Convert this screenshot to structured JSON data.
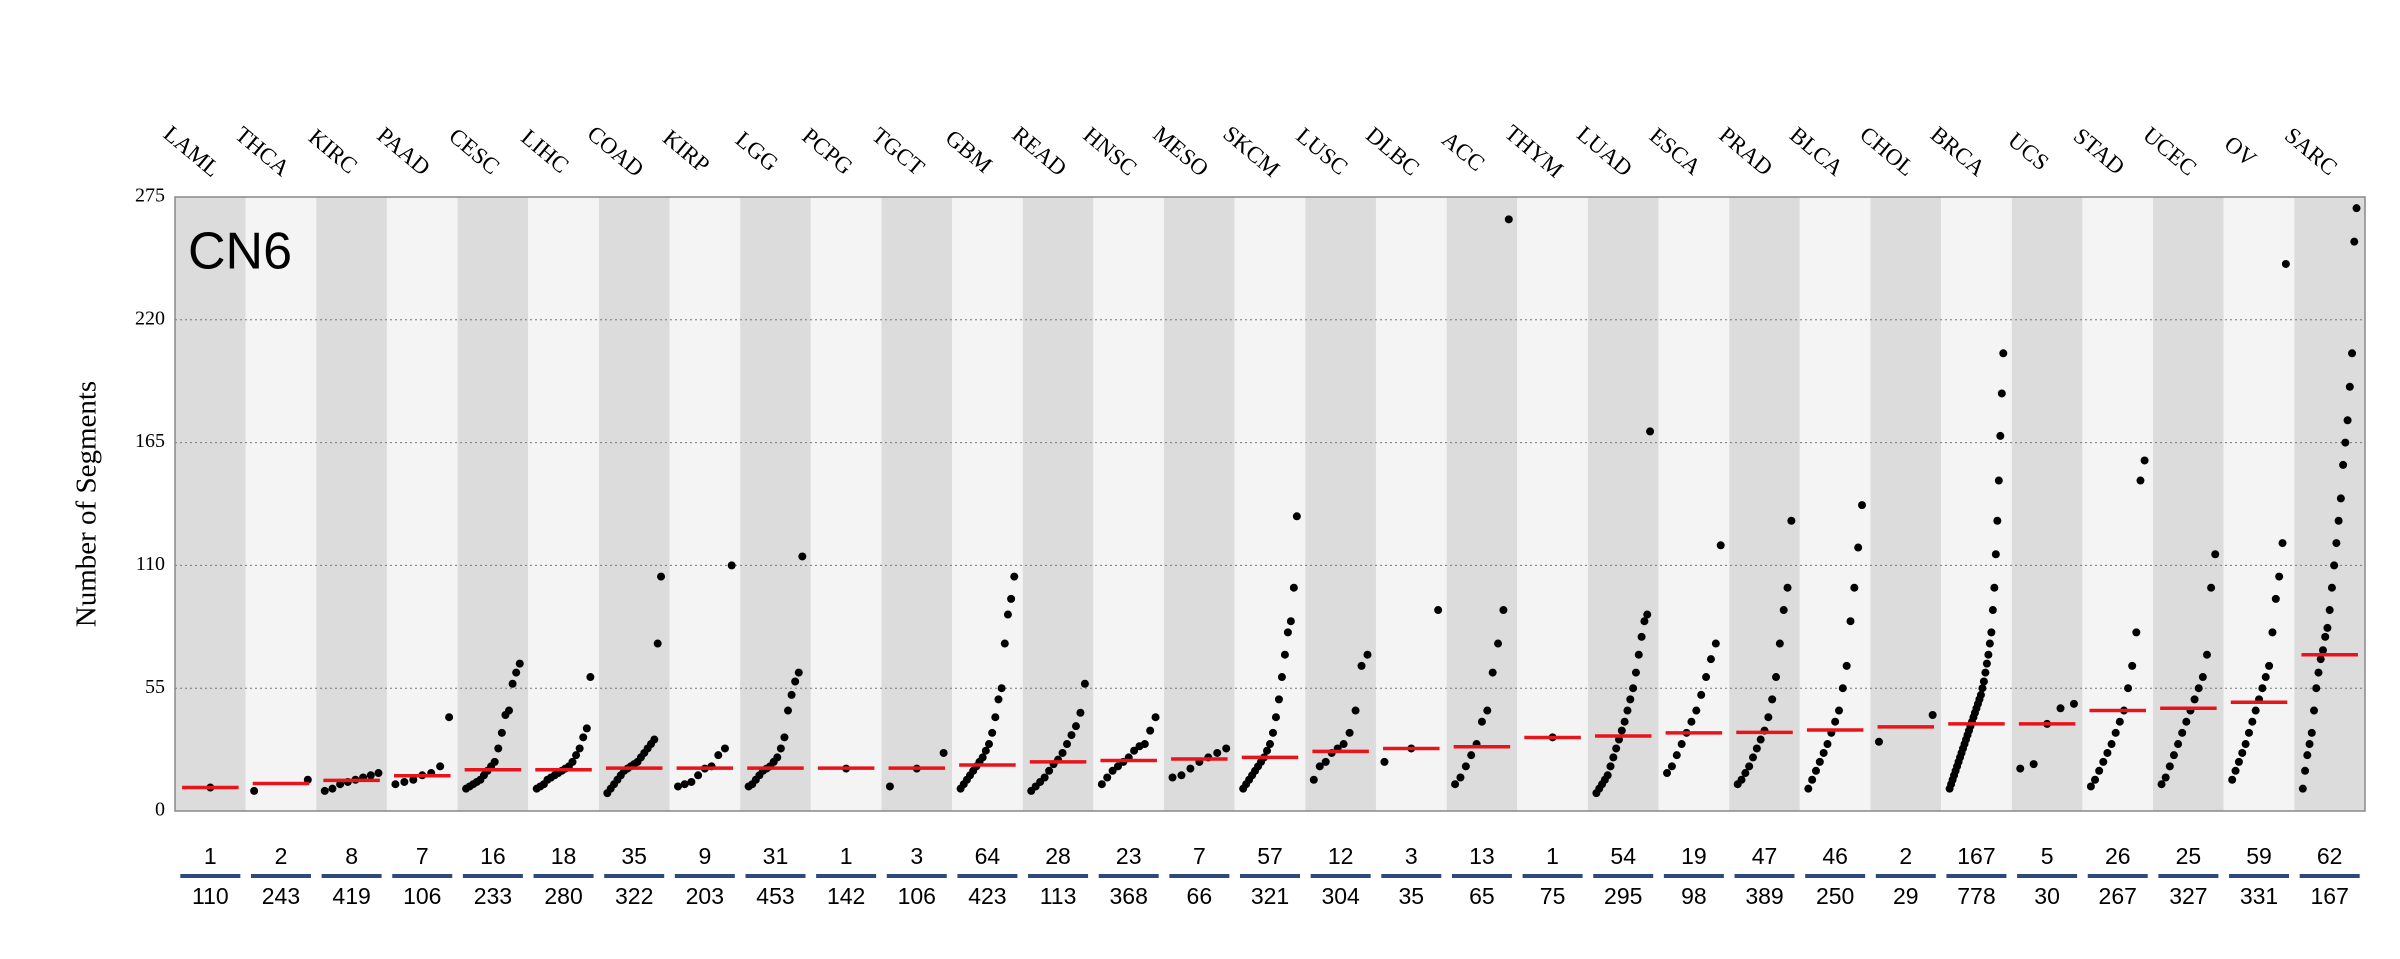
{
  "chart_data": {
    "type": "dot",
    "annotation": "CN6",
    "y_label": "Number of Segments",
    "categories": [
      "LAML",
      "THCA",
      "KIRC",
      "PAAD",
      "CESC",
      "LIHC",
      "COAD",
      "KIRP",
      "LGG",
      "PCPG",
      "TGCT",
      "GBM",
      "READ",
      "HNSC",
      "MESO",
      "SKCM",
      "LUSC",
      "DLBC",
      "ACC",
      "THYM",
      "LUAD",
      "ESCA",
      "PRAD",
      "BLCA",
      "CHOL",
      "BRCA",
      "UCS",
      "STAD",
      "UCEC",
      "OV",
      "SARC"
    ],
    "counts": [
      "1",
      "2",
      "8",
      "7",
      "16",
      "18",
      "35",
      "9",
      "31",
      "1",
      "3",
      "64",
      "28",
      "23",
      "7",
      "57",
      "12",
      "3",
      "13",
      "1",
      "54",
      "19",
      "47",
      "46",
      "2",
      "167",
      "5",
      "26",
      "25",
      "59",
      "62"
    ],
    "totals": [
      "110",
      "243",
      "419",
      "106",
      "233",
      "280",
      "322",
      "203",
      "453",
      "142",
      "106",
      "423",
      "113",
      "368",
      "66",
      "321",
      "304",
      "35",
      "65",
      "75",
      "295",
      "98",
      "389",
      "250",
      "29",
      "778",
      "30",
      "267",
      "327",
      "331",
      "167"
    ],
    "medians": [
      10.5,
      12.3,
      13.7,
      15.8,
      18.5,
      18.5,
      19.2,
      19.2,
      19.2,
      19.2,
      19.2,
      20.6,
      22,
      22.6,
      23.3,
      24,
      26.7,
      28,
      28.8,
      32.9,
      33.6,
      35,
      35.2,
      36.3,
      37.7,
      39,
      39,
      45,
      46,
      48.7,
      70
    ],
    "points": [
      [
        10.5
      ],
      [
        9,
        14
      ],
      [
        9,
        10,
        12,
        13,
        14,
        15,
        16,
        17
      ],
      [
        12,
        13,
        14,
        16,
        17,
        20,
        42
      ],
      [
        10,
        11,
        12,
        13,
        14,
        16,
        18,
        20,
        22,
        28,
        35,
        43,
        45,
        57,
        62,
        66
      ],
      [
        10,
        11,
        12,
        14,
        15,
        16,
        17,
        18,
        19,
        20,
        22,
        25,
        28,
        33,
        37,
        60
      ],
      [
        8,
        10,
        12,
        14,
        16,
        18,
        19,
        20,
        21,
        22,
        24,
        26,
        28,
        30,
        32,
        75,
        105
      ],
      [
        11,
        12,
        13,
        16,
        19,
        20,
        25,
        28,
        110
      ],
      [
        11,
        12,
        14,
        16,
        18,
        19,
        20,
        22,
        24,
        28,
        33,
        45,
        52,
        58,
        62,
        114
      ],
      [
        19
      ],
      [
        11,
        19,
        26
      ],
      [
        10,
        12,
        14,
        16,
        18,
        20,
        22,
        24,
        27,
        30,
        35,
        42,
        50,
        55,
        75,
        88,
        95,
        105
      ],
      [
        9,
        11,
        13,
        15,
        18,
        21,
        23,
        26,
        30,
        34,
        38,
        44,
        57
      ],
      [
        12,
        15,
        18,
        20,
        22,
        24,
        27,
        29,
        30,
        36,
        42
      ],
      [
        15,
        16,
        19,
        22,
        24,
        26,
        28
      ],
      [
        10,
        12,
        14,
        16,
        18,
        20,
        22,
        24,
        27,
        30,
        35,
        42,
        50,
        60,
        70,
        80,
        85,
        100,
        132
      ],
      [
        14,
        20,
        22,
        26,
        28,
        30,
        35,
        45,
        65,
        70
      ],
      [
        22,
        28,
        90
      ],
      [
        12,
        15,
        20,
        25,
        30,
        40,
        45,
        62,
        75,
        90,
        265
      ],
      [
        33
      ],
      [
        8,
        10,
        12,
        14,
        16,
        20,
        24,
        28,
        32,
        36,
        40,
        45,
        50,
        55,
        62,
        70,
        78,
        85,
        88,
        170
      ],
      [
        17,
        20,
        25,
        30,
        35,
        40,
        45,
        52,
        60,
        68,
        75,
        119
      ],
      [
        12,
        14,
        17,
        20,
        24,
        28,
        32,
        36,
        42,
        50,
        60,
        75,
        90,
        100,
        130
      ],
      [
        10,
        14,
        18,
        22,
        26,
        30,
        35,
        40,
        45,
        55,
        65,
        85,
        100,
        118,
        137
      ],
      [
        31,
        43
      ],
      [
        10,
        12,
        14,
        16,
        18,
        20,
        22,
        24,
        26,
        28,
        30,
        32,
        34,
        36,
        38,
        40,
        42,
        44,
        46,
        48,
        50,
        52,
        55,
        58,
        62,
        66,
        70,
        75,
        80,
        90,
        100,
        115,
        130,
        148,
        168,
        187,
        205
      ],
      [
        19,
        21,
        39,
        46,
        48
      ],
      [
        11,
        14,
        18,
        22,
        26,
        30,
        35,
        40,
        45,
        55,
        65,
        80,
        148,
        157
      ],
      [
        12,
        15,
        20,
        25,
        30,
        35,
        40,
        45,
        50,
        55,
        60,
        70,
        100,
        115
      ],
      [
        14,
        18,
        22,
        26,
        30,
        35,
        40,
        45,
        50,
        55,
        60,
        65,
        80,
        95,
        105,
        120,
        245
      ],
      [
        10,
        18,
        25,
        30,
        35,
        45,
        55,
        62,
        68,
        72,
        78,
        82,
        90,
        100,
        110,
        120,
        130,
        140,
        155,
        165,
        175,
        190,
        205,
        255,
        270
      ]
    ],
    "ylim": [
      0,
      275
    ],
    "yticks": [
      0,
      55,
      110,
      165,
      220,
      275
    ],
    "grid": true,
    "dot_color": "#000000",
    "median_color": "#e8141c",
    "band_colors": [
      "#dcdcdc",
      "#f4f4f4"
    ],
    "count_line_color": "#2e4a7a"
  }
}
